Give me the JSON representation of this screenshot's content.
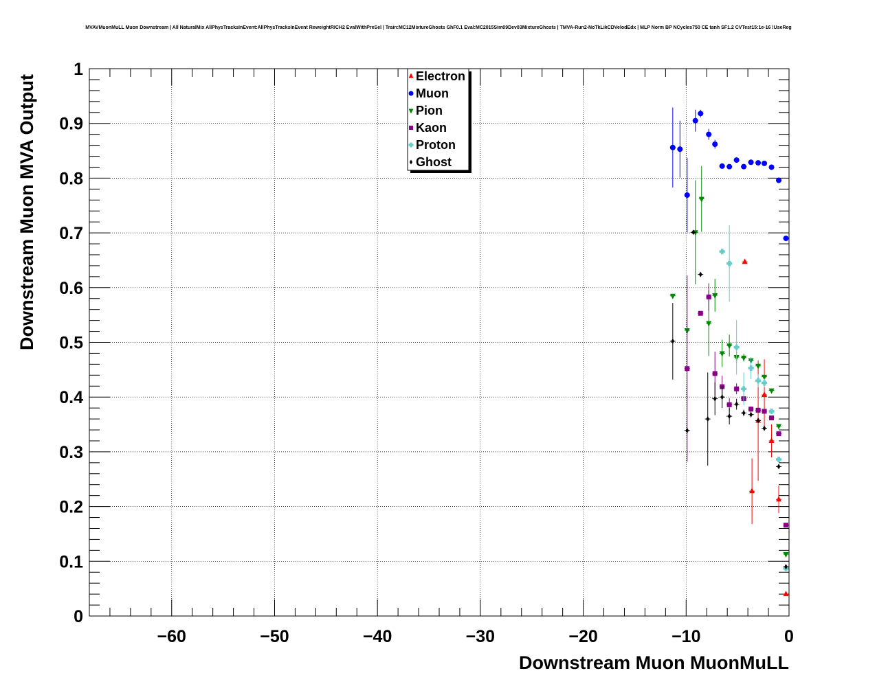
{
  "chart_data": {
    "type": "scatter",
    "title": "MVAVMuonMuLL Muon Downstream | All NaturalMix AllPhysTracksInEvent:AllPhysTracksInEvent ReweightRICH2 EvalWithPreSel | Train:MC12MixtureGhosts GhF0.1 Eval:MC2015Sim09Dev03MixtureGhosts | TMVA-Run2-NoTkLikCDVelodEdx | MLP Norm BP NCycles750 CE tanh SF1.2 CVTest15:1e-16 !UseReg",
    "xlabel": "Downstream Muon MuonMuLL",
    "ylabel": "Downstream Muon MVA Output",
    "xlim": [
      -68,
      0
    ],
    "ylim": [
      0,
      1
    ],
    "xticks": [
      -60,
      -50,
      -40,
      -30,
      -20,
      -10,
      0
    ],
    "xtick_labels": [
      "−60",
      "−50",
      "−40",
      "−30",
      "−20",
      "−10",
      "0"
    ],
    "yticks": [
      0,
      0.1,
      0.2,
      0.3,
      0.4,
      0.5,
      0.6,
      0.7,
      0.8,
      0.9,
      1
    ],
    "ytick_labels": [
      "0",
      "0.1",
      "0.2",
      "0.3",
      "0.4",
      "0.5",
      "0.6",
      "0.7",
      "0.8",
      "0.9",
      "1"
    ],
    "grid": true,
    "legend_position": "top-center",
    "series": [
      {
        "name": "Electron",
        "color": "#ff0000",
        "marker": "triangle-up",
        "points": [
          {
            "x": -4.3,
            "y": 0.647,
            "err": 0.0
          },
          {
            "x": -3.6,
            "y": 0.228,
            "err": 0.06
          },
          {
            "x": -3.0,
            "y": 0.357,
            "err": 0.11
          },
          {
            "x": -2.4,
            "y": 0.404,
            "err": 0.065
          },
          {
            "x": -1.7,
            "y": 0.32,
            "err": 0.03
          },
          {
            "x": -1.0,
            "y": 0.213,
            "err": 0.025
          },
          {
            "x": -0.3,
            "y": 0.04,
            "err": 0.0
          }
        ]
      },
      {
        "name": "Muon",
        "color": "#0000ff",
        "marker": "circle",
        "points": [
          {
            "x": -11.3,
            "y": 0.856,
            "err": 0.073
          },
          {
            "x": -10.6,
            "y": 0.853,
            "err": 0.052
          },
          {
            "x": -9.9,
            "y": 0.769,
            "err": 0.068
          },
          {
            "x": -9.1,
            "y": 0.905,
            "err": 0.02
          },
          {
            "x": -8.6,
            "y": 0.918,
            "err": 0.007
          },
          {
            "x": -7.8,
            "y": 0.88,
            "err": 0.01
          },
          {
            "x": -7.2,
            "y": 0.862,
            "err": 0.008
          },
          {
            "x": -6.5,
            "y": 0.822,
            "err": 0.005
          },
          {
            "x": -5.8,
            "y": 0.821,
            "err": 0.004
          },
          {
            "x": -5.1,
            "y": 0.833,
            "err": 0.003
          },
          {
            "x": -4.4,
            "y": 0.821,
            "err": 0.003
          },
          {
            "x": -3.7,
            "y": 0.829,
            "err": 0.002
          },
          {
            "x": -3.0,
            "y": 0.828,
            "err": 0.002
          },
          {
            "x": -2.4,
            "y": 0.827,
            "err": 0.002
          },
          {
            "x": -1.7,
            "y": 0.82,
            "err": 0.002
          },
          {
            "x": -1.0,
            "y": 0.796,
            "err": 0.002
          },
          {
            "x": -0.3,
            "y": 0.69,
            "err": 0.001
          }
        ]
      },
      {
        "name": "Pion",
        "color": "#008800",
        "marker": "triangle-down",
        "points": [
          {
            "x": -11.3,
            "y": 0.585,
            "err": 0.0
          },
          {
            "x": -9.9,
            "y": 0.522,
            "err": 0.0
          },
          {
            "x": -9.1,
            "y": 0.701,
            "err": 0.095
          },
          {
            "x": -8.5,
            "y": 0.762,
            "err": 0.06
          },
          {
            "x": -7.8,
            "y": 0.535,
            "err": 0.06
          },
          {
            "x": -7.2,
            "y": 0.586,
            "err": 0.03
          },
          {
            "x": -6.5,
            "y": 0.48,
            "err": 0.025
          },
          {
            "x": -5.8,
            "y": 0.494,
            "err": 0.02
          },
          {
            "x": -5.1,
            "y": 0.473,
            "err": 0.01
          },
          {
            "x": -4.4,
            "y": 0.472,
            "err": 0.007
          },
          {
            "x": -3.7,
            "y": 0.467,
            "err": 0.006
          },
          {
            "x": -3.0,
            "y": 0.457,
            "err": 0.005
          },
          {
            "x": -2.4,
            "y": 0.437,
            "err": 0.004
          },
          {
            "x": -1.7,
            "y": 0.412,
            "err": 0.003
          },
          {
            "x": -1.0,
            "y": 0.347,
            "err": 0.002
          },
          {
            "x": -0.3,
            "y": 0.113,
            "err": 0.001
          }
        ]
      },
      {
        "name": "Kaon",
        "color": "#880088",
        "marker": "square",
        "points": [
          {
            "x": -9.9,
            "y": 0.452,
            "err": 0.17
          },
          {
            "x": -8.6,
            "y": 0.553,
            "err": 0.0
          },
          {
            "x": -7.8,
            "y": 0.583,
            "err": 0.025
          },
          {
            "x": -7.2,
            "y": 0.443,
            "err": 0.04
          },
          {
            "x": -6.5,
            "y": 0.419,
            "err": 0.02
          },
          {
            "x": -5.8,
            "y": 0.386,
            "err": 0.012
          },
          {
            "x": -5.1,
            "y": 0.415,
            "err": 0.01
          },
          {
            "x": -4.4,
            "y": 0.397,
            "err": 0.006
          },
          {
            "x": -3.7,
            "y": 0.378,
            "err": 0.005
          },
          {
            "x": -3.0,
            "y": 0.376,
            "err": 0.004
          },
          {
            "x": -2.4,
            "y": 0.374,
            "err": 0.003
          },
          {
            "x": -1.7,
            "y": 0.362,
            "err": 0.003
          },
          {
            "x": -1.0,
            "y": 0.333,
            "err": 0.002
          },
          {
            "x": -0.3,
            "y": 0.166,
            "err": 0.001
          }
        ]
      },
      {
        "name": "Proton",
        "color": "#66cccc",
        "marker": "cross",
        "points": [
          {
            "x": -6.5,
            "y": 0.666,
            "err": 0.0
          },
          {
            "x": -5.8,
            "y": 0.644,
            "err": 0.07
          },
          {
            "x": -5.1,
            "y": 0.491,
            "err": 0.05
          },
          {
            "x": -4.4,
            "y": 0.415,
            "err": 0.03
          },
          {
            "x": -3.7,
            "y": 0.453,
            "err": 0.02
          },
          {
            "x": -3.0,
            "y": 0.43,
            "err": 0.012
          },
          {
            "x": -2.4,
            "y": 0.426,
            "err": 0.008
          },
          {
            "x": -1.7,
            "y": 0.374,
            "err": 0.005
          },
          {
            "x": -1.0,
            "y": 0.286,
            "err": 0.003
          },
          {
            "x": -0.3,
            "y": 0.087,
            "err": 0.001
          }
        ]
      },
      {
        "name": "Ghost",
        "color": "#000000",
        "marker": "diamond",
        "points": [
          {
            "x": -11.3,
            "y": 0.502,
            "err": 0.07
          },
          {
            "x": -9.9,
            "y": 0.339,
            "err": 0.0
          },
          {
            "x": -9.3,
            "y": 0.701,
            "err": 0.0
          },
          {
            "x": -8.6,
            "y": 0.624,
            "err": 0.0
          },
          {
            "x": -7.9,
            "y": 0.36,
            "err": 0.085
          },
          {
            "x": -7.2,
            "y": 0.397,
            "err": 0.03
          },
          {
            "x": -6.5,
            "y": 0.4,
            "err": 0.02
          },
          {
            "x": -5.8,
            "y": 0.365,
            "err": 0.015
          },
          {
            "x": -5.1,
            "y": 0.387,
            "err": 0.01
          },
          {
            "x": -4.4,
            "y": 0.371,
            "err": 0.006
          },
          {
            "x": -3.7,
            "y": 0.368,
            "err": 0.005
          },
          {
            "x": -3.0,
            "y": 0.357,
            "err": 0.004
          },
          {
            "x": -2.4,
            "y": 0.343,
            "err": 0.003
          },
          {
            "x": -1.0,
            "y": 0.273,
            "err": 0.002
          },
          {
            "x": -0.3,
            "y": 0.09,
            "err": 0.001
          }
        ]
      }
    ]
  }
}
